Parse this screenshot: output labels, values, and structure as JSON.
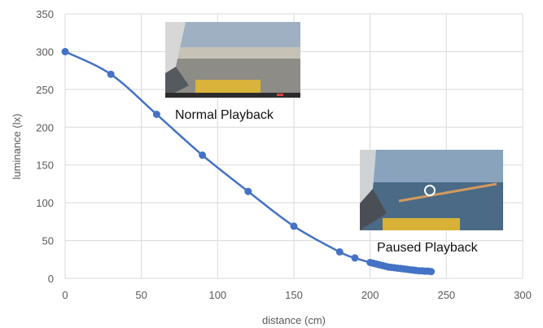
{
  "chart_data": {
    "type": "line",
    "title": "",
    "xlabel": "distance (cm)",
    "ylabel": "luminance (lx)",
    "xlim": [
      0,
      300
    ],
    "ylim": [
      0,
      350
    ],
    "xticks": [
      0,
      50,
      100,
      150,
      200,
      250,
      300
    ],
    "yticks": [
      0,
      50,
      100,
      150,
      200,
      250,
      300,
      350
    ],
    "grid": true,
    "series": [
      {
        "color": "#4472C4",
        "x": [
          0,
          30,
          60,
          90,
          120,
          150,
          180,
          190,
          200,
          202,
          204,
          206,
          208,
          210,
          212,
          214,
          216,
          218,
          220,
          222,
          224,
          226,
          228,
          230,
          232,
          234,
          236,
          238,
          240
        ],
        "y": [
          300,
          270,
          217,
          163,
          115,
          69,
          35,
          27,
          21,
          20,
          19,
          18,
          17,
          16,
          15,
          14.5,
          14,
          13.5,
          13,
          12.5,
          12,
          11.5,
          11,
          10.5,
          10,
          10,
          9.5,
          9.5,
          9
        ]
      }
    ],
    "annotations": [
      {
        "text": "Normal Playback"
      },
      {
        "text": "Paused Playback"
      }
    ]
  }
}
